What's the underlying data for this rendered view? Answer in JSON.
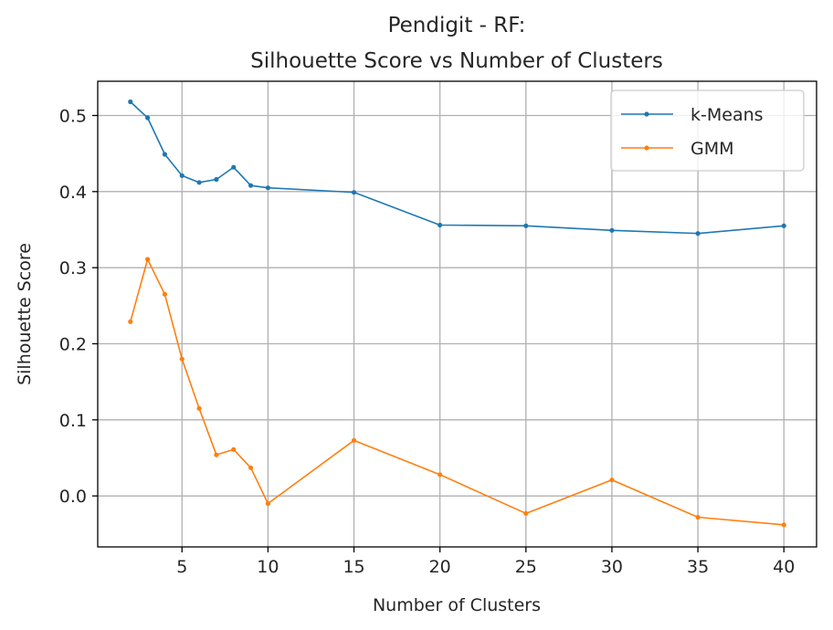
{
  "chart_data": {
    "type": "line",
    "title_line1": "Pendigit - RF:",
    "title_line2": "Silhouette Score vs Number of Clusters",
    "xlabel": "Number of Clusters",
    "ylabel": "Silhouette Score",
    "xlim": [
      0.1,
      41.9
    ],
    "ylim": [
      -0.067,
      0.545
    ],
    "xticks": [
      5,
      10,
      15,
      20,
      25,
      30,
      35,
      40
    ],
    "xtick_labels": [
      "5",
      "10",
      "15",
      "20",
      "25",
      "30",
      "35",
      "40"
    ],
    "yticks": [
      0.0,
      0.1,
      0.2,
      0.3,
      0.4,
      0.5
    ],
    "ytick_labels": [
      "0.0",
      "0.1",
      "0.2",
      "0.3",
      "0.4",
      "0.5"
    ],
    "grid": true,
    "legend_position": "top-right",
    "x": [
      2,
      3,
      4,
      5,
      6,
      7,
      8,
      9,
      10,
      15,
      20,
      25,
      30,
      35,
      40
    ],
    "series": [
      {
        "name": "k-Means",
        "color": "#1f77b4",
        "values": [
          0.518,
          0.497,
          0.449,
          0.421,
          0.412,
          0.416,
          0.432,
          0.408,
          0.405,
          0.399,
          0.356,
          0.355,
          0.349,
          0.345,
          0.355
        ]
      },
      {
        "name": "GMM",
        "color": "#ff7f0e",
        "values": [
          0.229,
          0.311,
          0.265,
          0.18,
          0.115,
          0.054,
          0.061,
          0.037,
          -0.01,
          0.073,
          0.028,
          -0.023,
          0.021,
          -0.028,
          -0.038
        ]
      }
    ]
  }
}
